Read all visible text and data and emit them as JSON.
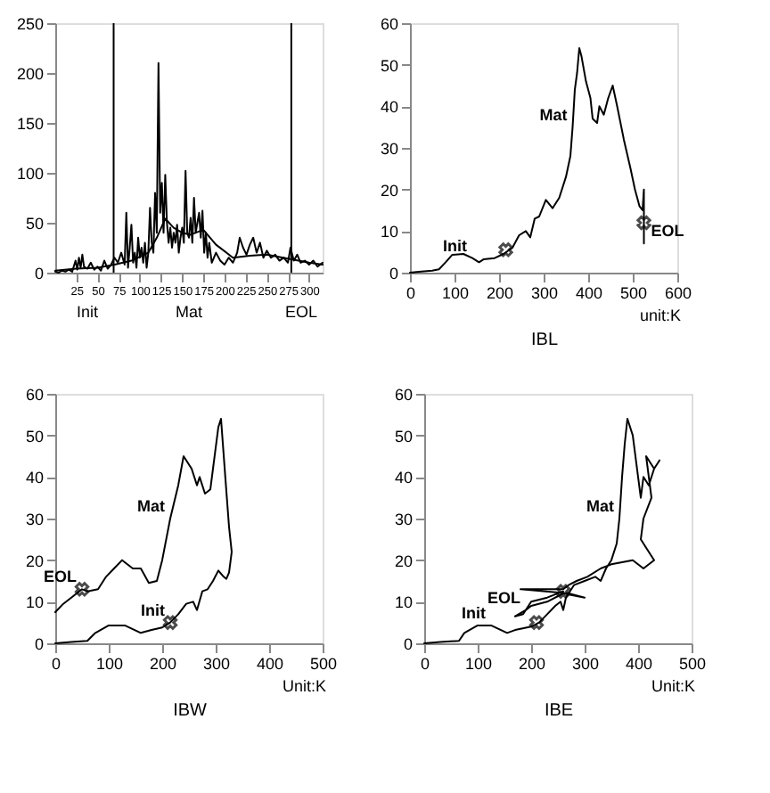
{
  "chart_data": [
    {
      "type": "line",
      "xlim": [
        0,
        316
      ],
      "ylim": [
        0,
        250
      ],
      "xticks": [
        25,
        50,
        75,
        100,
        125,
        150,
        175,
        200,
        225,
        250,
        275,
        300
      ],
      "yticks": [
        0,
        50,
        100,
        150,
        200,
        250
      ],
      "series": [
        {
          "color": "#000000",
          "x": [
            0,
            4,
            8,
            12,
            16,
            20,
            24,
            26,
            28,
            30,
            32,
            34,
            38,
            42,
            46,
            50,
            54,
            58,
            62,
            66,
            70,
            74,
            78,
            82,
            84,
            86,
            88,
            90,
            92,
            94,
            96,
            98,
            100,
            102,
            104,
            106,
            108,
            110,
            112,
            114,
            116,
            118,
            120,
            122,
            124,
            126,
            128,
            130,
            132,
            134,
            136,
            138,
            140,
            142,
            144,
            146,
            148,
            150,
            152,
            154,
            156,
            158,
            160,
            162,
            164,
            166,
            168,
            170,
            172,
            174,
            176,
            178,
            180,
            182,
            185,
            190,
            195,
            200,
            205,
            210,
            215,
            218,
            222,
            226,
            230,
            234,
            238,
            242,
            246,
            250,
            255,
            260,
            265,
            270,
            275,
            278,
            282,
            286,
            290,
            295,
            300,
            305,
            310,
            316
          ],
          "values": [
            1,
            0,
            2,
            1,
            3,
            1,
            12,
            3,
            15,
            5,
            18,
            6,
            4,
            10,
            3,
            6,
            2,
            12,
            4,
            8,
            15,
            10,
            20,
            8,
            60,
            5,
            25,
            48,
            10,
            20,
            5,
            35,
            15,
            25,
            10,
            30,
            5,
            20,
            65,
            30,
            20,
            80,
            40,
            210,
            60,
            90,
            40,
            98,
            50,
            30,
            45,
            25,
            40,
            30,
            48,
            20,
            35,
            45,
            30,
            102,
            40,
            35,
            55,
            30,
            75,
            40,
            50,
            60,
            35,
            62,
            20,
            40,
            15,
            30,
            10,
            20,
            12,
            8,
            15,
            10,
            20,
            35,
            25,
            18,
            28,
            35,
            20,
            30,
            15,
            22,
            15,
            18,
            12,
            15,
            10,
            25,
            12,
            18,
            10,
            12,
            8,
            12,
            6,
            10
          ]
        },
        {
          "color": "#000000",
          "x": [
            0,
            25,
            50,
            70,
            90,
            110,
            120,
            130,
            140,
            150,
            160,
            175,
            190,
            210,
            230,
            250,
            275,
            300,
            316
          ],
          "values": [
            2,
            4,
            5,
            8,
            12,
            20,
            35,
            54,
            45,
            40,
            38,
            43,
            28,
            15,
            17,
            18,
            14,
            10,
            8
          ]
        }
      ],
      "ref_lines": [
        {
          "axis": "x",
          "value": 69,
          "color": "#000000"
        },
        {
          "axis": "x",
          "value": 279,
          "color": "#000000"
        }
      ],
      "annotations": [
        "Init",
        "Mat",
        "EOL"
      ]
    },
    {
      "type": "line",
      "xlabel": "IBL",
      "xlim": [
        0,
        600
      ],
      "ylim": [
        0,
        60
      ],
      "xticks": [
        0,
        100,
        200,
        300,
        400,
        500,
        600
      ],
      "yticks": [
        0,
        10,
        20,
        30,
        40,
        50,
        60
      ],
      "series": [
        {
          "color": "#000000",
          "x": [
            0,
            20,
            50,
            65,
            80,
            95,
            120,
            140,
            155,
            165,
            190,
            210,
            230,
            245,
            260,
            270,
            280,
            290,
            305,
            320,
            335,
            350,
            360,
            365,
            370,
            375,
            380,
            385,
            395,
            405,
            410,
            420,
            425,
            435,
            445,
            455,
            465,
            480,
            495,
            505,
            515,
            522,
            525,
            525
          ],
          "values": [
            0,
            0.2,
            0.5,
            0.8,
            2.5,
            4.3,
            4.5,
            3.5,
            2.5,
            3.2,
            3.5,
            4.5,
            6,
            9,
            10,
            8.5,
            13,
            13.5,
            17.5,
            15.5,
            18,
            23,
            28,
            35,
            44,
            48,
            54,
            52,
            46,
            42,
            37,
            36,
            40,
            38,
            42,
            45,
            40,
            32,
            25,
            20,
            16,
            15,
            20,
            7
          ]
        },
        {
          "type": "scatter",
          "marker": "cross",
          "color": "#000000",
          "x": [
            215,
            525
          ],
          "values": [
            5.5,
            12
          ]
        }
      ],
      "annotations": [
        {
          "text": "Init",
          "x": 140,
          "y": 3.5
        },
        {
          "text": "Mat",
          "x": 365,
          "y": 35
        },
        {
          "text": "EOL",
          "x": 525,
          "y": 7
        },
        "unit:K"
      ]
    },
    {
      "type": "line",
      "xlabel": "IBW",
      "xlim": [
        0,
        500
      ],
      "ylim": [
        0,
        60
      ],
      "xticks": [
        0,
        100,
        200,
        300,
        400,
        500
      ],
      "yticks": [
        0,
        10,
        20,
        30,
        40,
        50,
        60
      ],
      "series": [
        {
          "color": "#000000",
          "x": [
            0,
            30,
            60,
            75,
            100,
            130,
            160,
            180,
            200,
            215,
            230,
            245,
            258,
            265,
            275,
            285,
            295,
            305,
            315,
            320,
            325,
            330,
            325,
            318,
            310,
            305,
            295,
            290,
            280,
            270,
            265,
            255,
            240,
            230,
            215,
            200,
            190,
            175,
            160,
            145,
            125,
            110,
            95,
            80,
            60,
            50,
            30,
            15,
            0
          ],
          "values": [
            0,
            0.3,
            0.6,
            2.5,
            4.3,
            4.3,
            2.5,
            3.2,
            3.8,
            5,
            7,
            9.5,
            10,
            8,
            12.5,
            13,
            15,
            17.5,
            16,
            15.5,
            17,
            22,
            28,
            40,
            54,
            52,
            42,
            37,
            36,
            40,
            38,
            42,
            45,
            38,
            30,
            20,
            15,
            14.5,
            18,
            18,
            20,
            18,
            16,
            13,
            12.5,
            13,
            11,
            9.5,
            7.5
          ]
        },
        {
          "type": "scatter",
          "marker": "cross",
          "color": "#000000",
          "x": [
            215,
            50
          ],
          "values": [
            5,
            13
          ]
        }
      ],
      "annotations": [
        {
          "text": "Init",
          "x": 215,
          "y": 5
        },
        {
          "text": "Mat",
          "x": 215,
          "y": 30
        },
        {
          "text": "EOL",
          "x": 50,
          "y": 13
        },
        "Unit:K"
      ]
    },
    {
      "type": "line",
      "xlabel": "IBE",
      "xlim": [
        0,
        500
      ],
      "ylim": [
        0,
        60
      ],
      "xticks": [
        0,
        100,
        200,
        300,
        400,
        500
      ],
      "yticks": [
        0,
        10,
        20,
        30,
        40,
        50,
        60
      ],
      "series": [
        {
          "color": "#000000",
          "x": [
            0,
            30,
            65,
            75,
            100,
            125,
            155,
            170,
            200,
            215,
            230,
            245,
            255,
            260,
            265,
            280,
            300,
            320,
            330,
            340,
            350,
            360,
            365,
            370,
            375,
            380,
            390,
            400,
            405,
            410,
            420,
            430,
            440,
            430,
            415,
            425,
            410,
            405,
            415,
            430,
            410,
            390,
            350,
            330,
            305,
            285,
            270,
            260,
            220,
            180,
            270,
            300,
            260,
            230,
            200,
            190,
            170,
            185,
            200,
            230,
            260
          ],
          "values": [
            0,
            0.3,
            0.6,
            2.5,
            4.3,
            4.3,
            2.5,
            3.2,
            4,
            5,
            7,
            9,
            10,
            8,
            11,
            14,
            15,
            16,
            15,
            18,
            20,
            24,
            30,
            40,
            48,
            54,
            50,
            40,
            35,
            40,
            38,
            42,
            44,
            42,
            45,
            35,
            30,
            25,
            23,
            20,
            18,
            20,
            19,
            18,
            16,
            15,
            14,
            13,
            13,
            13,
            12,
            11,
            12,
            10,
            9,
            8,
            6.5,
            7,
            10,
            11,
            12.5
          ]
        },
        {
          "type": "scatter",
          "marker": "cross",
          "color": "#000000",
          "x": [
            210,
            260
          ],
          "values": [
            5,
            12.5
          ]
        }
      ],
      "annotations": [
        {
          "text": "Init",
          "x": 125,
          "y": 4.3
        },
        {
          "text": "Mat",
          "x": 365,
          "y": 30
        },
        {
          "text": "EOL",
          "x": 190,
          "y": 8
        },
        "Unit:K"
      ]
    }
  ]
}
